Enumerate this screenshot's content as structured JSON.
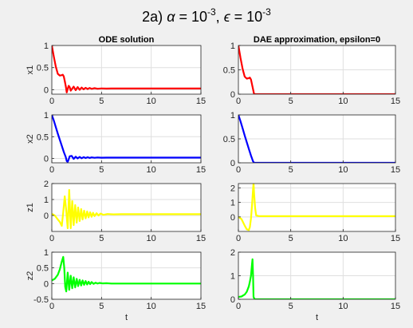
{
  "figure": {
    "title_parts": [
      "2a) ",
      "α",
      " = 10",
      "-3",
      ", ",
      "ϵ",
      " = 10",
      "-3"
    ]
  },
  "chart_data": [
    {
      "type": "line",
      "title": "ODE solution",
      "ylabel": "x1",
      "xlabel": "",
      "xlim": [
        0,
        15
      ],
      "ylim": [
        -0.1,
        1.0
      ],
      "xticks": [
        0,
        5,
        10,
        15
      ],
      "yticks": [
        0,
        0.5,
        1
      ],
      "ytick_labels": [
        "0",
        "0.5",
        "1"
      ],
      "grid": true,
      "series": [
        {
          "color": "#ff0000",
          "x": [
            0,
            0.2,
            0.4,
            0.6,
            0.8,
            1.0,
            1.1,
            1.2,
            1.3,
            1.4,
            1.5,
            1.6,
            1.7,
            1.8,
            1.9,
            2.0,
            2.2,
            2.4,
            2.6,
            2.8,
            3.0,
            3.2,
            3.4,
            3.6,
            3.8,
            4.0,
            4.3,
            4.6,
            5.0,
            5.5,
            6.0,
            7,
            8,
            10,
            12,
            15
          ],
          "y": [
            1.0,
            0.75,
            0.52,
            0.36,
            0.32,
            0.33,
            0.34,
            0.3,
            0.2,
            0.08,
            -0.06,
            0.02,
            0.09,
            0.06,
            -0.02,
            0.01,
            0.07,
            -0.01,
            0.06,
            0.0,
            0.05,
            0.01,
            0.045,
            0.015,
            0.04,
            0.02,
            0.035,
            0.022,
            0.03,
            0.026,
            0.028,
            0.028,
            0.028,
            0.028,
            0.028,
            0.028
          ]
        }
      ]
    },
    {
      "type": "line",
      "title": "DAE approximation, epsilon=0",
      "ylabel": "",
      "xlabel": "",
      "xlim": [
        0,
        15
      ],
      "ylim": [
        0,
        1.0
      ],
      "xticks": [
        0,
        5,
        10,
        15
      ],
      "yticks": [
        0,
        0.5,
        1
      ],
      "ytick_labels": [
        "0",
        "0.5",
        "1"
      ],
      "grid": true,
      "series": [
        {
          "color": "#ff0000",
          "x": [
            0,
            0.2,
            0.4,
            0.6,
            0.8,
            1.0,
            1.1,
            1.2,
            1.3,
            1.4,
            1.5,
            1.6,
            1.7,
            2.0,
            3,
            5,
            10,
            15
          ],
          "y": [
            1.0,
            0.75,
            0.52,
            0.36,
            0.32,
            0.33,
            0.34,
            0.3,
            0.2,
            0.1,
            0.0,
            0.0,
            0.0,
            0.0,
            0.0,
            0.0,
            0.0,
            0.0
          ]
        }
      ]
    },
    {
      "type": "line",
      "title": "",
      "ylabel": "x2",
      "xlabel": "",
      "xlim": [
        0,
        15
      ],
      "ylim": [
        -0.1,
        1.0
      ],
      "xticks": [
        0,
        5,
        10,
        15
      ],
      "yticks": [
        0,
        0.5,
        1
      ],
      "ytick_labels": [
        "0",
        "0.5",
        "1"
      ],
      "grid": true,
      "series": [
        {
          "color": "#0000ff",
          "x": [
            0,
            0.2,
            0.4,
            0.6,
            0.8,
            1.0,
            1.2,
            1.4,
            1.5,
            1.6,
            1.7,
            1.8,
            2.0,
            2.2,
            2.4,
            2.6,
            2.8,
            3.0,
            3.2,
            3.4,
            3.6,
            3.8,
            4.0,
            4.3,
            4.6,
            5.0,
            5.5,
            6,
            8,
            10,
            12,
            15
          ],
          "y": [
            1.0,
            0.87,
            0.72,
            0.57,
            0.43,
            0.29,
            0.15,
            0.03,
            -0.06,
            -0.08,
            -0.02,
            0.05,
            0.06,
            -0.01,
            0.04,
            0.0,
            0.035,
            0.005,
            0.03,
            0.01,
            0.028,
            0.012,
            0.025,
            0.015,
            0.022,
            0.018,
            0.02,
            0.02,
            0.02,
            0.02,
            0.02,
            0.02
          ]
        }
      ]
    },
    {
      "type": "line",
      "title": "",
      "ylabel": "",
      "xlabel": "",
      "xlim": [
        0,
        15
      ],
      "ylim": [
        0,
        1.0
      ],
      "xticks": [
        0,
        5,
        10,
        15
      ],
      "yticks": [
        0,
        0.5,
        1
      ],
      "ytick_labels": [
        "0",
        "0.5",
        "1"
      ],
      "grid": true,
      "series": [
        {
          "color": "#0000ff",
          "x": [
            0,
            0.2,
            0.4,
            0.6,
            0.8,
            1.0,
            1.2,
            1.4,
            1.5,
            2,
            5,
            10,
            15
          ],
          "y": [
            1.0,
            0.87,
            0.72,
            0.57,
            0.43,
            0.29,
            0.15,
            0.03,
            0.0,
            0.0,
            0.0,
            0.0,
            0.0
          ]
        }
      ]
    },
    {
      "type": "line",
      "title": "",
      "ylabel": "z1",
      "xlabel": "",
      "xlim": [
        0,
        15
      ],
      "ylim": [
        -1,
        2
      ],
      "xticks": [
        0,
        5,
        10,
        15
      ],
      "yticks": [
        0,
        1,
        2
      ],
      "ytick_labels": [
        "0",
        "1",
        "2"
      ],
      "grid": true,
      "series": [
        {
          "color": "#ffff00",
          "x": [
            0,
            0.3,
            0.6,
            0.8,
            1.0,
            1.15,
            1.3,
            1.45,
            1.6,
            1.75,
            1.9,
            2.05,
            2.2,
            2.35,
            2.5,
            2.65,
            2.8,
            2.95,
            3.1,
            3.25,
            3.4,
            3.55,
            3.7,
            3.85,
            4.0,
            4.15,
            4.3,
            4.5,
            4.7,
            4.9,
            5.2,
            5.6,
            6.2,
            7,
            10,
            15
          ],
          "y": [
            0.1,
            0.0,
            -0.25,
            -0.4,
            -0.65,
            0.2,
            1.2,
            0.3,
            -0.8,
            1.6,
            -0.8,
            0.9,
            -0.6,
            0.65,
            -0.45,
            0.5,
            -0.35,
            0.4,
            -0.25,
            0.3,
            -0.18,
            0.25,
            -0.12,
            0.2,
            -0.08,
            0.17,
            -0.04,
            0.14,
            0.0,
            0.12,
            0.04,
            0.09,
            0.07,
            0.08,
            0.08,
            0.08
          ]
        }
      ]
    },
    {
      "type": "line",
      "title": "",
      "ylabel": "",
      "xlabel": "",
      "xlim": [
        0,
        15
      ],
      "ylim": [
        -1,
        2.3
      ],
      "xticks": [
        0,
        5,
        10,
        15
      ],
      "yticks": [
        0,
        1,
        2
      ],
      "ytick_labels": [
        "0",
        "1",
        "2"
      ],
      "grid": true,
      "series": [
        {
          "color": "#ffff00",
          "x": [
            0,
            0.3,
            0.6,
            0.8,
            1.0,
            1.1,
            1.2,
            1.3,
            1.4,
            1.45,
            1.5,
            1.6,
            1.7,
            2.0,
            5,
            10,
            15
          ],
          "y": [
            0.0,
            -0.15,
            -0.6,
            -0.85,
            -0.9,
            -0.7,
            -0.1,
            0.8,
            1.9,
            2.3,
            1.6,
            0.6,
            0.1,
            0.05,
            0.05,
            0.05,
            0.05
          ]
        }
      ]
    },
    {
      "type": "line",
      "title": "",
      "ylabel": "z2",
      "xlabel": "t",
      "xlim": [
        0,
        15
      ],
      "ylim": [
        -0.5,
        1.0
      ],
      "xticks": [
        0,
        5,
        10,
        15
      ],
      "yticks": [
        -0.5,
        0,
        0.5,
        1
      ],
      "ytick_labels": [
        "-0.5",
        "0",
        "0.5",
        "1"
      ],
      "grid": true,
      "series": [
        {
          "color": "#00ff00",
          "x": [
            0,
            0.3,
            0.6,
            0.8,
            1.0,
            1.15,
            1.25,
            1.35,
            1.45,
            1.6,
            1.75,
            1.9,
            2.05,
            2.2,
            2.35,
            2.5,
            2.65,
            2.8,
            2.95,
            3.1,
            3.25,
            3.4,
            3.55,
            3.7,
            3.85,
            4.0,
            4.2,
            4.4,
            4.6,
            4.8,
            5.1,
            5.5,
            6,
            7,
            10,
            15
          ],
          "y": [
            0.1,
            0.15,
            0.28,
            0.45,
            0.7,
            0.85,
            0.5,
            -0.1,
            -0.25,
            0.35,
            -0.2,
            0.25,
            -0.15,
            0.2,
            -0.12,
            0.15,
            -0.08,
            0.12,
            -0.06,
            0.1,
            -0.04,
            0.08,
            -0.03,
            0.06,
            -0.02,
            0.05,
            -0.01,
            0.03,
            0.0,
            0.02,
            0.005,
            0.01,
            0.0,
            0.0,
            0.0,
            0.0
          ]
        }
      ]
    },
    {
      "type": "line",
      "title": "",
      "ylabel": "",
      "xlabel": "t",
      "xlim": [
        0,
        15
      ],
      "ylim": [
        0,
        2
      ],
      "xticks": [
        0,
        5,
        10,
        15
      ],
      "yticks": [
        0,
        1,
        2
      ],
      "ytick_labels": [
        "0",
        "1",
        "2"
      ],
      "grid": true,
      "series": [
        {
          "color": "#00ff00",
          "x": [
            0,
            0.3,
            0.6,
            0.8,
            1.0,
            1.1,
            1.2,
            1.3,
            1.35,
            1.4,
            1.45,
            1.55,
            2,
            5,
            10,
            15
          ],
          "y": [
            0.1,
            0.12,
            0.2,
            0.32,
            0.55,
            0.75,
            1.0,
            1.5,
            1.7,
            1.0,
            0.1,
            0.0,
            0.0,
            0.0,
            0.0,
            0.0
          ]
        }
      ]
    }
  ]
}
